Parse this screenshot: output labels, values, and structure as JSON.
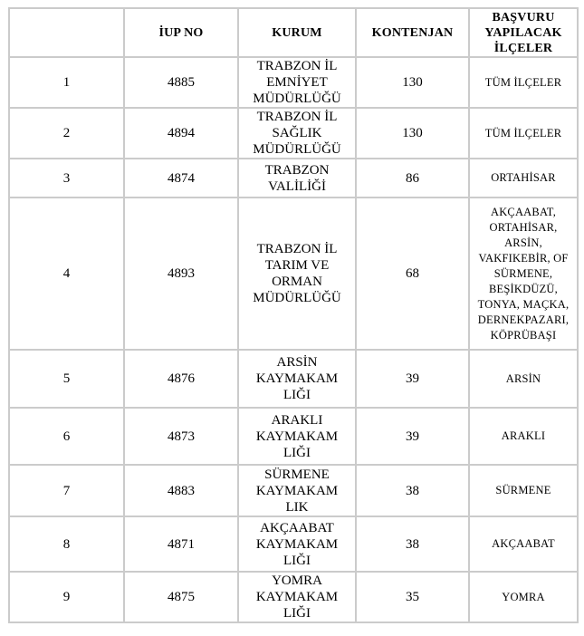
{
  "table": {
    "colors": {
      "border": "#cbcbcb",
      "text": "#000000",
      "background": "#ffffff"
    },
    "header": {
      "blank": "",
      "iup_no": "İUP NO",
      "kurum": "KURUM",
      "kontenjan": "KONTENJAN",
      "ilceler": "BAŞVURU\nYAPILACAK\nİLÇELER"
    },
    "rows": [
      {
        "num": "1",
        "iup": "4885",
        "kurum": "TRABZON İL\nEMNİYET\nMÜDÜRLÜĞÜ",
        "kontenjan": "130",
        "ilceler": "TÜM İLÇELER"
      },
      {
        "num": "2",
        "iup": "4894",
        "kurum": "TRABZON İL\nSAĞLIK\nMÜDÜRLÜĞÜ",
        "kontenjan": "130",
        "ilceler": "TÜM İLÇELER"
      },
      {
        "num": "3",
        "iup": "4874",
        "kurum": "TRABZON\nVALİLİĞİ",
        "kontenjan": "86",
        "ilceler": "ORTAHİSAR"
      },
      {
        "num": "4",
        "iup": "4893",
        "kurum": "TRABZON İL\nTARIM VE\nORMAN\nMÜDÜRLÜĞÜ",
        "kontenjan": "68",
        "ilceler": "AKÇAABAT,\nORTAHİSAR,\nARSİN,\nVAKFIKEBİR, OF\nSÜRMENE,\nBEŞİKDÜZÜ,\nTONYA, MAÇKA,\nDERNEKPAZARI,\nKÖPRÜBAŞI"
      },
      {
        "num": "5",
        "iup": "4876",
        "kurum": "ARSİN\nKAYMAKAM\nLIĞI",
        "kontenjan": "39",
        "ilceler": "ARSİN"
      },
      {
        "num": "6",
        "iup": "4873",
        "kurum": "ARAKLI\nKAYMAKAM\nLIĞI",
        "kontenjan": "39",
        "ilceler": "ARAKLI"
      },
      {
        "num": "7",
        "iup": "4883",
        "kurum": "SÜRMENE\nKAYMAKAM\nLIK",
        "kontenjan": "38",
        "ilceler": "SÜRMENE"
      },
      {
        "num": "8",
        "iup": "4871",
        "kurum": "AKÇAABAT\nKAYMAKAM\nLIĞI",
        "kontenjan": "38",
        "ilceler": "AKÇAABAT"
      },
      {
        "num": "9",
        "iup": "4875",
        "kurum": "YOMRA\nKAYMAKAM\nLIĞI",
        "kontenjan": "35",
        "ilceler": "YOMRA"
      }
    ]
  }
}
